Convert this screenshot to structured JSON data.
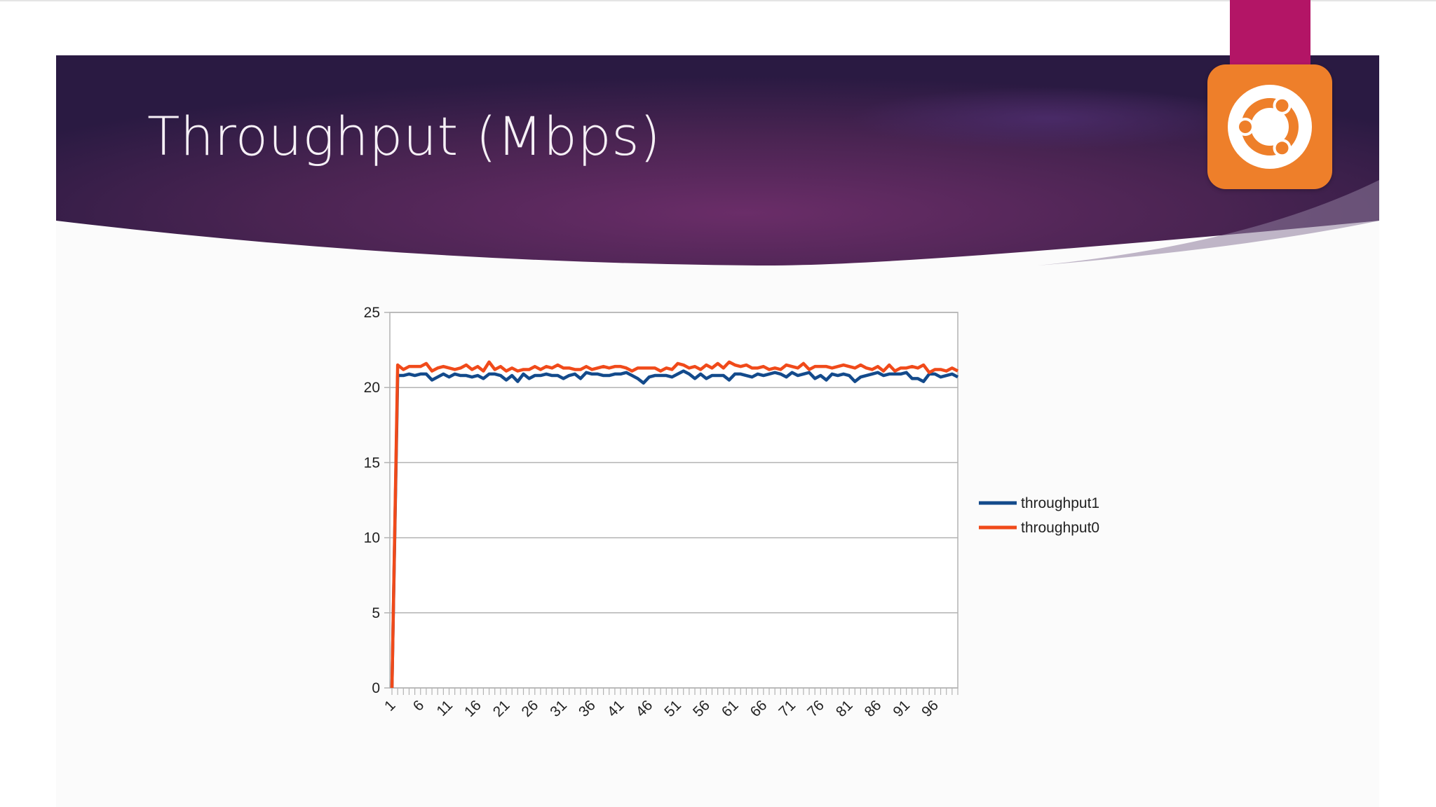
{
  "slide": {
    "title": "Throughput (Mbps)",
    "logo_icon": "ubuntu-logo-icon",
    "colors": {
      "banner_dark": "#2c1b43",
      "banner_mid": "#6a2d68",
      "ribbon": "#b31566",
      "logo_orange": "#ee7f2a"
    }
  },
  "chart_data": {
    "type": "line",
    "title": "",
    "xlabel": "",
    "ylabel": "",
    "x_tick_labels": [
      "1",
      "6",
      "11",
      "16",
      "21",
      "26",
      "31",
      "36",
      "41",
      "46",
      "51",
      "56",
      "61",
      "66",
      "71",
      "76",
      "81",
      "86",
      "91",
      "96"
    ],
    "x_range": [
      1,
      100
    ],
    "ylim": [
      0,
      25
    ],
    "y_ticks": [
      0,
      5,
      10,
      15,
      20,
      25
    ],
    "grid": true,
    "legend_position": "right",
    "series": [
      {
        "name": "throughput1",
        "color": "#134a8b",
        "values": [
          0,
          20.8,
          20.8,
          20.9,
          20.8,
          20.9,
          20.9,
          20.5,
          20.7,
          20.9,
          20.7,
          20.9,
          20.8,
          20.8,
          20.7,
          20.8,
          20.6,
          20.9,
          20.9,
          20.8,
          20.5,
          20.8,
          20.4,
          20.9,
          20.6,
          20.8,
          20.8,
          20.9,
          20.8,
          20.8,
          20.6,
          20.8,
          20.9,
          20.6,
          21.0,
          20.9,
          20.9,
          20.8,
          20.8,
          20.9,
          20.9,
          21.0,
          20.8,
          20.6,
          20.3,
          20.7,
          20.8,
          20.8,
          20.8,
          20.7,
          20.9,
          21.1,
          20.9,
          20.6,
          20.9,
          20.6,
          20.8,
          20.8,
          20.8,
          20.5,
          20.9,
          20.9,
          20.8,
          20.7,
          20.9,
          20.8,
          20.9,
          21.0,
          20.9,
          20.7,
          21.0,
          20.8,
          20.9,
          21.0,
          20.6,
          20.8,
          20.5,
          20.9,
          20.8,
          20.9,
          20.8,
          20.4,
          20.7,
          20.8,
          20.9,
          21.0,
          20.8,
          20.9,
          20.9,
          20.9,
          21.0,
          20.6,
          20.6,
          20.4,
          20.9,
          20.9,
          20.7,
          20.8,
          20.9,
          20.7
        ]
      },
      {
        "name": "throughput0",
        "color": "#f04a1a",
        "values": [
          0,
          21.5,
          21.2,
          21.4,
          21.4,
          21.4,
          21.6,
          21.1,
          21.3,
          21.4,
          21.3,
          21.2,
          21.3,
          21.5,
          21.2,
          21.4,
          21.1,
          21.7,
          21.2,
          21.4,
          21.1,
          21.3,
          21.1,
          21.2,
          21.2,
          21.4,
          21.2,
          21.4,
          21.3,
          21.5,
          21.3,
          21.3,
          21.2,
          21.2,
          21.4,
          21.2,
          21.3,
          21.4,
          21.3,
          21.4,
          21.4,
          21.3,
          21.1,
          21.3,
          21.3,
          21.3,
          21.3,
          21.1,
          21.3,
          21.2,
          21.6,
          21.5,
          21.3,
          21.4,
          21.2,
          21.5,
          21.3,
          21.6,
          21.3,
          21.7,
          21.5,
          21.4,
          21.5,
          21.3,
          21.3,
          21.4,
          21.2,
          21.3,
          21.2,
          21.5,
          21.4,
          21.3,
          21.6,
          21.2,
          21.4,
          21.4,
          21.4,
          21.3,
          21.4,
          21.5,
          21.4,
          21.3,
          21.5,
          21.3,
          21.2,
          21.4,
          21.1,
          21.5,
          21.1,
          21.3,
          21.3,
          21.4,
          21.3,
          21.5,
          21.0,
          21.2,
          21.2,
          21.1,
          21.3,
          21.1
        ]
      }
    ]
  }
}
